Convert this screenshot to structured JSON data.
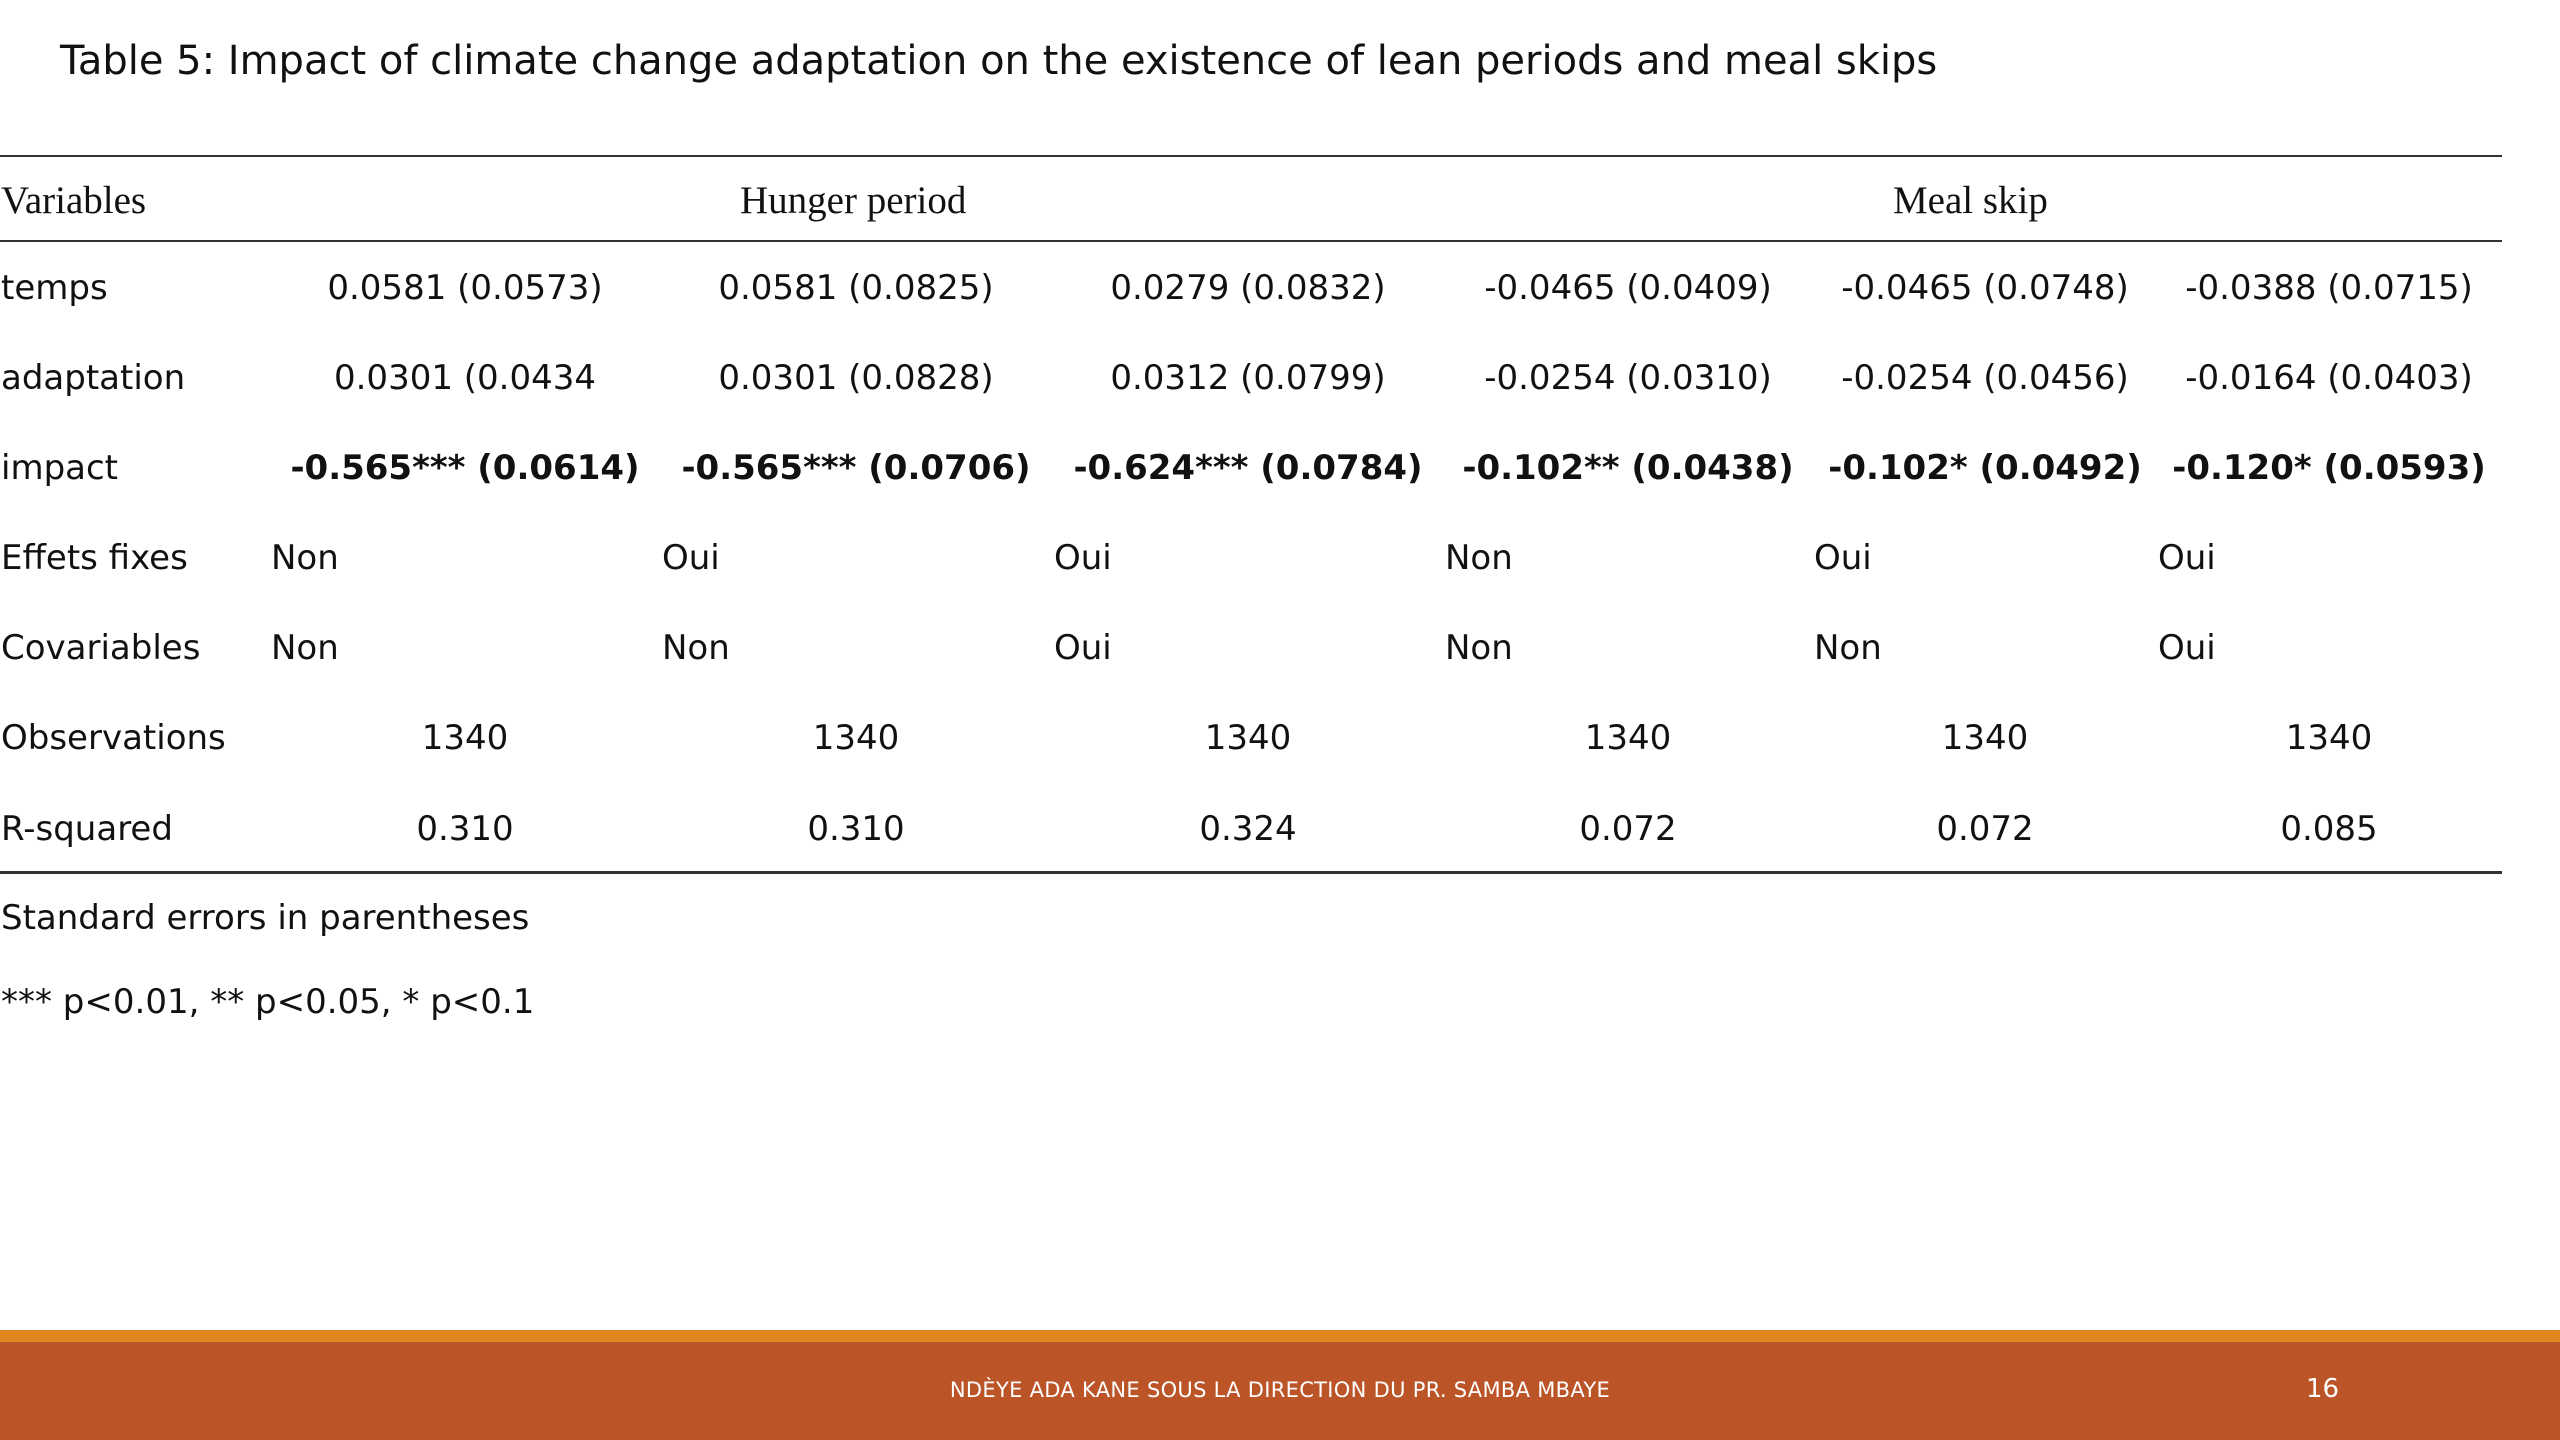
{
  "slide": {
    "title": "Table 5: Impact of climate change adaptation on the existence of lean periods and meal skips"
  },
  "table": {
    "headers": {
      "variables": "Variables",
      "hunger_period": "Hunger period",
      "meal_skip": "Meal skip"
    },
    "rows": [
      {
        "label": "temps",
        "bold": false,
        "cells": [
          "0.0581 (0.0573)",
          "0.0581 (0.0825)",
          "0.0279 (0.0832)",
          "-0.0465 (0.0409)",
          "-0.0465 (0.0748)",
          "-0.0388 (0.0715)"
        ]
      },
      {
        "label": "adaptation",
        "bold": false,
        "cells": [
          "0.0301 (0.0434",
          "0.0301 (0.0828)",
          "0.0312 (0.0799)",
          "-0.0254 (0.0310)",
          "-0.0254 (0.0456)",
          "-0.0164 (0.0403)"
        ]
      },
      {
        "label": "impact",
        "bold": true,
        "cells": [
          "-0.565*** (0.0614)",
          "-0.565*** (0.0706)",
          "-0.624*** (0.0784)",
          "-0.102** (0.0438)",
          "-0.102* (0.0492)",
          "-0.120* (0.0593)"
        ]
      },
      {
        "label": "Effets fixes",
        "bold": false,
        "cells": [
          "Non",
          "Oui",
          "Oui",
          "Non",
          "Oui",
          "Oui"
        ]
      },
      {
        "label": "Covariables",
        "bold": false,
        "cells": [
          "Non",
          "Non",
          "Oui",
          "Non",
          "Non",
          "Oui"
        ]
      },
      {
        "label": "Observations",
        "bold": false,
        "cells": [
          "1340",
          "1340",
          "1340",
          "1340",
          "1340",
          "1340"
        ]
      },
      {
        "label": "R-squared",
        "bold": false,
        "cells": [
          "0.310",
          "0.310",
          "0.324",
          "0.072",
          "0.072",
          "0.085"
        ]
      }
    ],
    "notes": {
      "standard_errors": "Standard errors in parentheses",
      "significance": "*** p<0.01, ** p<0.05, * p<0.1"
    }
  },
  "footer": {
    "text": "NDÈYE ADA KANE SOUS LA DIRECTION DU PR. SAMBA MBAYE",
    "page_number": "16",
    "colors": {
      "accent": "#e0861f",
      "bar": "#bb5427"
    }
  }
}
